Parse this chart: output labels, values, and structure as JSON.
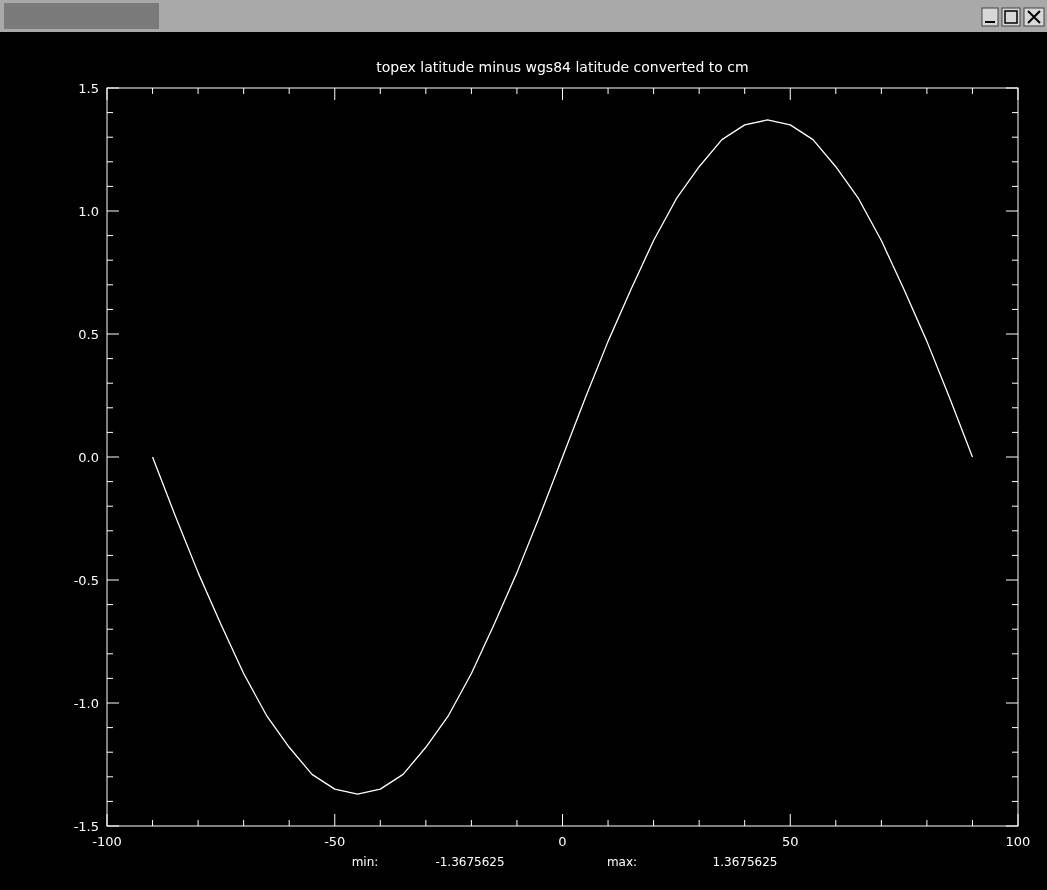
{
  "chart_data": {
    "type": "line",
    "title": "topex latitude minus wgs84 latitude converted to cm",
    "x": [
      -90,
      -85,
      -80,
      -75,
      -70,
      -65,
      -60,
      -55,
      -50,
      -45,
      -40,
      -35,
      -30,
      -25,
      -20,
      -15,
      -10,
      -5,
      0,
      5,
      10,
      15,
      20,
      25,
      30,
      35,
      40,
      45,
      50,
      55,
      60,
      65,
      70,
      75,
      80,
      85,
      90
    ],
    "series": [
      {
        "color": "#ffffff",
        "values": [
          0,
          -0.24,
          -0.47,
          -0.68,
          -0.88,
          -1.05,
          -1.18,
          -1.29,
          -1.35,
          -1.37,
          -1.35,
          -1.29,
          -1.18,
          -1.05,
          -0.88,
          -0.68,
          -0.47,
          -0.24,
          0,
          0.24,
          0.47,
          0.68,
          0.88,
          1.05,
          1.18,
          1.29,
          1.35,
          1.37,
          1.35,
          1.29,
          1.18,
          1.05,
          0.88,
          0.68,
          0.47,
          0.24,
          0
        ]
      }
    ],
    "xlim": [
      -100,
      100
    ],
    "xticks": [
      -100,
      {
        "value": -90,
        "label": null
      },
      {
        "value": -80,
        "label": null
      },
      {
        "value": -70,
        "label": null
      },
      {
        "value": -60,
        "label": null
      },
      -50,
      {
        "value": -40,
        "label": null
      },
      {
        "value": -30,
        "label": null
      },
      {
        "value": -20,
        "label": null
      },
      {
        "value": -10,
        "label": null
      },
      0,
      {
        "value": 10,
        "label": null
      },
      {
        "value": 20,
        "label": null
      },
      {
        "value": 30,
        "label": null
      },
      {
        "value": 40,
        "label": null
      },
      50,
      {
        "value": 60,
        "label": null
      },
      {
        "value": 70,
        "label": null
      },
      {
        "value": 80,
        "label": null
      },
      {
        "value": 90,
        "label": null
      },
      100
    ],
    "ylim": [
      -1.5,
      1.5
    ],
    "yticks": [
      -1.5,
      {
        "value": -1.4,
        "label": null
      },
      {
        "value": -1.3,
        "label": null
      },
      {
        "value": -1.2,
        "label": null
      },
      {
        "value": -1.1,
        "label": null
      },
      {
        "value": -1,
        "label": "-1.0"
      },
      {
        "value": -0.9,
        "label": null
      },
      {
        "value": -0.8,
        "label": null
      },
      {
        "value": -0.7,
        "label": null
      },
      {
        "value": -0.6,
        "label": null
      },
      -0.5,
      {
        "value": -0.4,
        "label": null
      },
      {
        "value": -0.3,
        "label": null
      },
      {
        "value": -0.2,
        "label": null
      },
      {
        "value": -0.1,
        "label": null
      },
      {
        "value": 0,
        "label": "0.0"
      },
      {
        "value": 0.1,
        "label": null
      },
      {
        "value": 0.2,
        "label": null
      },
      {
        "value": 0.3,
        "label": null
      },
      {
        "value": 0.4,
        "label": null
      },
      0.5,
      {
        "value": 0.6,
        "label": null
      },
      {
        "value": 0.7,
        "label": null
      },
      {
        "value": 0.8,
        "label": null
      },
      {
        "value": 0.9,
        "label": null
      },
      {
        "value": 1,
        "label": "1.0"
      },
      {
        "value": 1.1,
        "label": null
      },
      {
        "value": 1.2,
        "label": null
      },
      {
        "value": 1.3,
        "label": null
      },
      {
        "value": 1.4,
        "label": null
      },
      1.5
    ],
    "annotations": [
      "min:",
      "-1.3675625",
      "max:",
      "1.3675625"
    ],
    "grid": false,
    "marker": "none",
    "line_style": "solid"
  }
}
